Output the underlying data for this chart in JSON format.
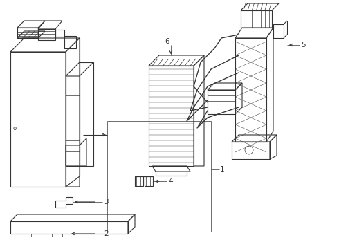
{
  "bg_color": "#ffffff",
  "line_color": "#333333",
  "lw": 0.8,
  "tlw": 0.5,
  "fig_w": 4.9,
  "fig_h": 3.6,
  "dpi": 100
}
